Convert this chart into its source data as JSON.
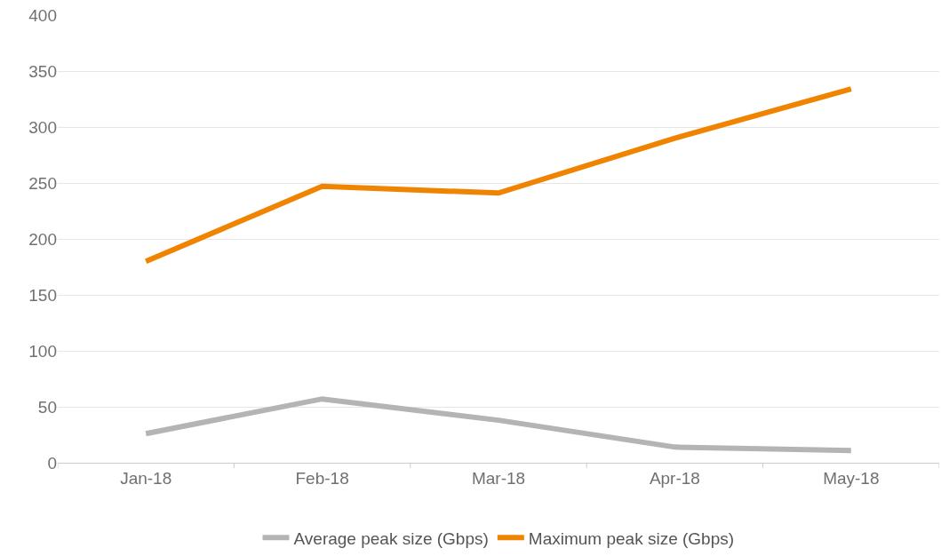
{
  "chart_data": {
    "type": "line",
    "categories": [
      "Jan-18",
      "Feb-18",
      "Mar-18",
      "Apr-18",
      "May-18"
    ],
    "series": [
      {
        "name": "Average peak size (Gbps)",
        "color": "#b4b4b4",
        "values": [
          26,
          57,
          38,
          14,
          11
        ]
      },
      {
        "name": "Maximum peak size (Gbps)",
        "color": "#f08400",
        "values": [
          180,
          247,
          241,
          290,
          334
        ]
      }
    ],
    "ylim": [
      0,
      400
    ],
    "yticks": [
      0,
      50,
      100,
      150,
      200,
      250,
      300,
      350,
      400
    ],
    "grid": "y",
    "legend": "bottom",
    "marker": "none",
    "line_style": "solid"
  }
}
